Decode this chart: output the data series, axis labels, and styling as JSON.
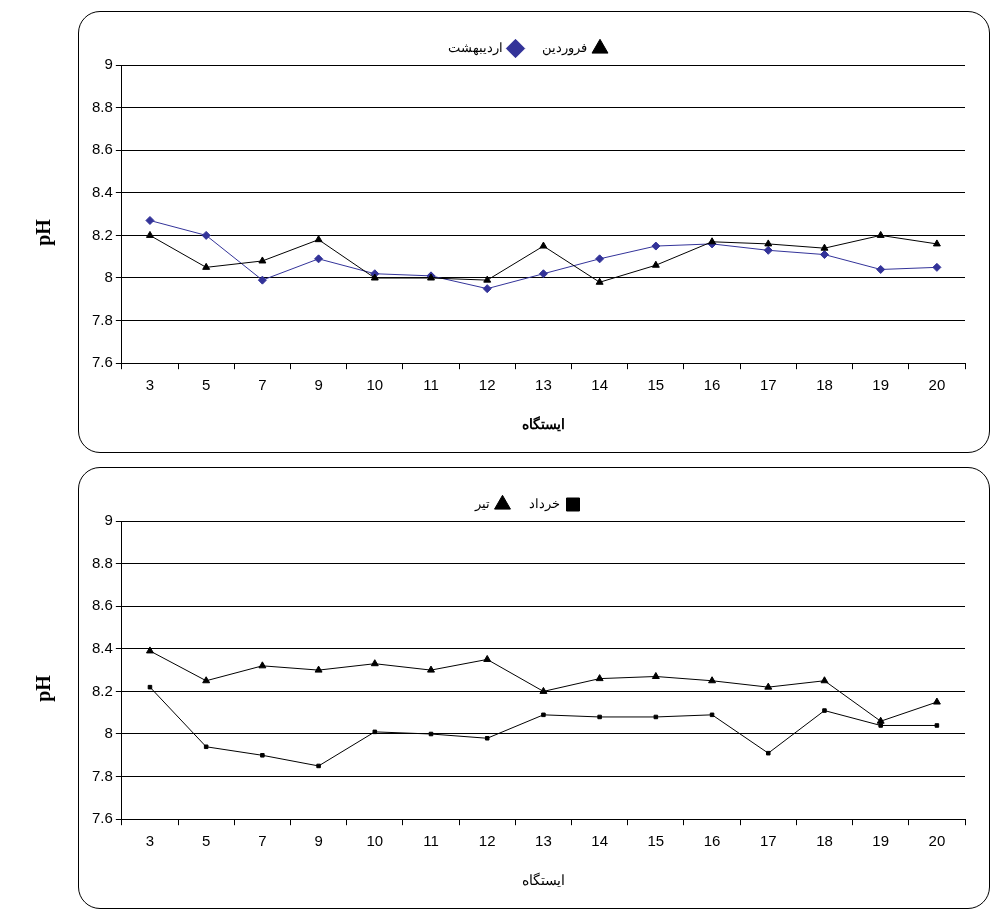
{
  "chart_data": [
    {
      "type": "line",
      "ylabel": "pH",
      "xlabel": "ایستگاه",
      "categories": [
        "3",
        "5",
        "7",
        "9",
        "10",
        "11",
        "12",
        "13",
        "14",
        "15",
        "16",
        "17",
        "18",
        "19",
        "20"
      ],
      "series": [
        {
          "name": "اردیبهشت",
          "color": "#333399",
          "marker": "diamond",
          "values": [
            8.27,
            8.2,
            7.99,
            8.09,
            8.02,
            8.01,
            7.95,
            8.02,
            8.09,
            8.15,
            8.16,
            8.13,
            8.11,
            8.04,
            8.05
          ]
        },
        {
          "name": "فروردین",
          "color": "#000000",
          "marker": "triangle",
          "values": [
            8.2,
            8.05,
            8.08,
            8.18,
            8.0,
            8.0,
            7.99,
            8.15,
            7.98,
            8.06,
            8.17,
            8.16,
            8.14,
            8.2,
            8.16
          ]
        }
      ],
      "ylim": [
        7.6,
        9
      ],
      "yticks": [
        7.6,
        7.8,
        8,
        8.2,
        8.4,
        8.6,
        8.8,
        9
      ],
      "grid": "y",
      "legend": "top",
      "line_style": "solid"
    },
    {
      "type": "line",
      "ylabel": "pH",
      "xlabel": "ایستگاه",
      "categories": [
        "3",
        "5",
        "7",
        "9",
        "10",
        "11",
        "12",
        "13",
        "14",
        "15",
        "16",
        "17",
        "18",
        "19",
        "20"
      ],
      "series": [
        {
          "name": "تیر",
          "color": "#000000",
          "marker": "triangle",
          "values": [
            8.39,
            8.25,
            8.32,
            8.3,
            8.33,
            8.3,
            8.35,
            8.2,
            8.26,
            8.27,
            8.25,
            8.22,
            8.25,
            8.06,
            8.15
          ]
        },
        {
          "name": "خرداد",
          "color": "#000000",
          "marker": "square",
          "values": [
            8.22,
            7.94,
            7.9,
            7.85,
            8.01,
            8.0,
            7.98,
            8.09,
            8.08,
            8.08,
            8.09,
            7.91,
            8.11,
            8.04,
            8.04
          ]
        }
      ],
      "ylim": [
        7.6,
        9
      ],
      "yticks": [
        7.6,
        7.8,
        8,
        8.2,
        8.4,
        8.6,
        8.8,
        9
      ],
      "grid": "y",
      "legend": "top",
      "line_style": "solid"
    }
  ]
}
